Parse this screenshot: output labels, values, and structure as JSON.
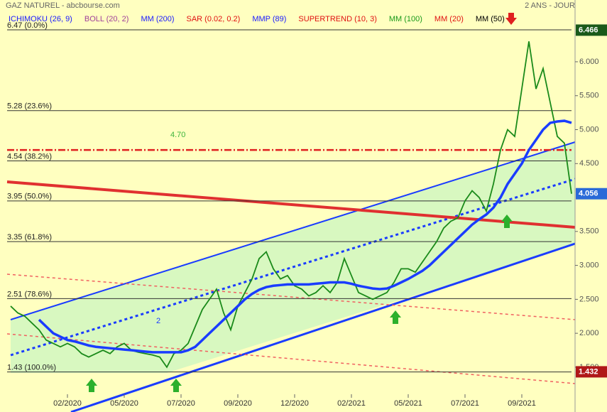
{
  "chart_data": {
    "type": "line",
    "title": "GAZ NATUREL - abcbourse.com",
    "subtitle": "2 ANS - JOUR",
    "legend_items": [
      {
        "label": "ICHIMOKU (26, 9)",
        "color": "#1a1aff"
      },
      {
        "label": "BOLL (20, 2)",
        "color": "#a0409a"
      },
      {
        "label": "MM (200)",
        "color": "#1a1aff"
      },
      {
        "label": "SAR (0.02, 0.2)",
        "color": "#e01010"
      },
      {
        "label": "MMP (89)",
        "color": "#1a1aff"
      },
      {
        "label": "SUPERTREND (10, 3)",
        "color": "#e01010"
      },
      {
        "label": "MM (100)",
        "color": "#1a9a1a"
      },
      {
        "label": "MM (20)",
        "color": "#e01010"
      },
      {
        "label": "MM (50)",
        "color": "#000000"
      }
    ],
    "categories": [
      null,
      null,
      null,
      null,
      null,
      null,
      null,
      null,
      "02/2020",
      null,
      null,
      null,
      null,
      null,
      null,
      null,
      "05/2020",
      null,
      null,
      null,
      null,
      null,
      null,
      null,
      "07/2020",
      null,
      null,
      null,
      null,
      null,
      null,
      null,
      "09/2020",
      null,
      null,
      null,
      null,
      null,
      null,
      null,
      "12/2020",
      null,
      null,
      null,
      null,
      null,
      null,
      null,
      "02/2021",
      null,
      null,
      null,
      null,
      null,
      null,
      null,
      "05/2021",
      null,
      null,
      null,
      null,
      null,
      null,
      null,
      "07/2021",
      null,
      null,
      null,
      null,
      null,
      null,
      null,
      "09/2021",
      null,
      null,
      null,
      null,
      null,
      null,
      null
    ],
    "series": [
      {
        "color": "#1a8a1a",
        "values": [
          2.4,
          2.3,
          2.25,
          2.15,
          2.05,
          1.9,
          1.85,
          1.8,
          1.85,
          1.8,
          1.7,
          1.65,
          1.7,
          1.75,
          1.7,
          1.8,
          1.85,
          1.75,
          1.72,
          1.7,
          1.68,
          1.65,
          1.5,
          1.7,
          1.75,
          1.85,
          2.1,
          2.35,
          2.5,
          2.65,
          2.3,
          2.05,
          2.4,
          2.6,
          2.8,
          3.1,
          3.2,
          2.95,
          2.8,
          2.85,
          2.7,
          2.65,
          2.55,
          2.6,
          2.7,
          2.6,
          2.75,
          3.1,
          2.85,
          2.6,
          2.55,
          2.5,
          2.55,
          2.6,
          2.75,
          2.95,
          2.95,
          2.9,
          3.05,
          3.2,
          3.35,
          3.55,
          3.65,
          3.7,
          3.95,
          4.1,
          4.0,
          3.8,
          4.2,
          4.7,
          5.0,
          4.9,
          5.6,
          6.3,
          5.6,
          5.9,
          5.4,
          4.9,
          4.8,
          4.056
        ]
      },
      {
        "name": "MM (200)",
        "color": "#1a3cff",
        "values": [
          null,
          null,
          null,
          null,
          2.2,
          2.1,
          2.0,
          1.95,
          1.9,
          1.88,
          1.85,
          1.82,
          1.8,
          1.79,
          1.78,
          1.77,
          1.76,
          1.75,
          1.74,
          1.73,
          1.72,
          1.72,
          1.72,
          1.72,
          1.72,
          1.75,
          1.8,
          1.9,
          2.0,
          2.1,
          2.2,
          2.3,
          2.4,
          2.5,
          2.58,
          2.64,
          2.68,
          2.7,
          2.71,
          2.72,
          2.72,
          2.72,
          2.72,
          2.73,
          2.74,
          2.75,
          2.75,
          2.75,
          2.73,
          2.7,
          2.68,
          2.66,
          2.65,
          2.66,
          2.7,
          2.75,
          2.8,
          2.86,
          2.92,
          3.0,
          3.1,
          3.2,
          3.3,
          3.4,
          3.5,
          3.6,
          3.68,
          3.75,
          3.85,
          4.0,
          4.2,
          4.35,
          4.5,
          4.7,
          4.85,
          5.0,
          5.1,
          5.12,
          5.13,
          5.1
        ]
      }
    ],
    "ylim": [
      0.84,
      6.91
    ],
    "yticks": [
      {
        "value": 1.5,
        "label": "1.500"
      },
      {
        "value": 2,
        "label": "2.000"
      },
      {
        "value": 2.5,
        "label": "2.500"
      },
      {
        "value": 3,
        "label": "3.000"
      },
      {
        "value": 3.5,
        "label": "3.500"
      },
      {
        "value": 4.5,
        "label": "4.500"
      },
      {
        "value": 5,
        "label": "5.000"
      },
      {
        "value": 5.5,
        "label": "5.500"
      },
      {
        "value": 6,
        "label": "6.000"
      }
    ],
    "fibonacci": [
      {
        "value": 6.47,
        "label": "6.47  (0.0%)"
      },
      {
        "value": 5.28,
        "label": "5.28  (23.6%)"
      },
      {
        "value": 4.54,
        "label": "4.54  (38.2%)"
      },
      {
        "value": 3.95,
        "label": "3.95  (50.0%)"
      },
      {
        "value": 3.35,
        "label": "3.35  (61.8%)"
      },
      {
        "value": 2.51,
        "label": "2.51  (78.6%)"
      },
      {
        "value": 1.43,
        "label": "1.43  (100.0%)"
      }
    ],
    "price_tags": [
      {
        "value": 6.466,
        "label": "6.466",
        "color": "#1a5a1a"
      },
      {
        "value": 4.056,
        "label": "4.056",
        "color": "#2a6ad8"
      },
      {
        "value": 1.432,
        "label": "1.432",
        "color": "#b01818"
      }
    ],
    "annotations": [
      {
        "label": "4.70",
        "value": 4.7,
        "color": "#3cb43c"
      },
      {
        "label": "2",
        "color": "#1a3cff"
      }
    ]
  }
}
